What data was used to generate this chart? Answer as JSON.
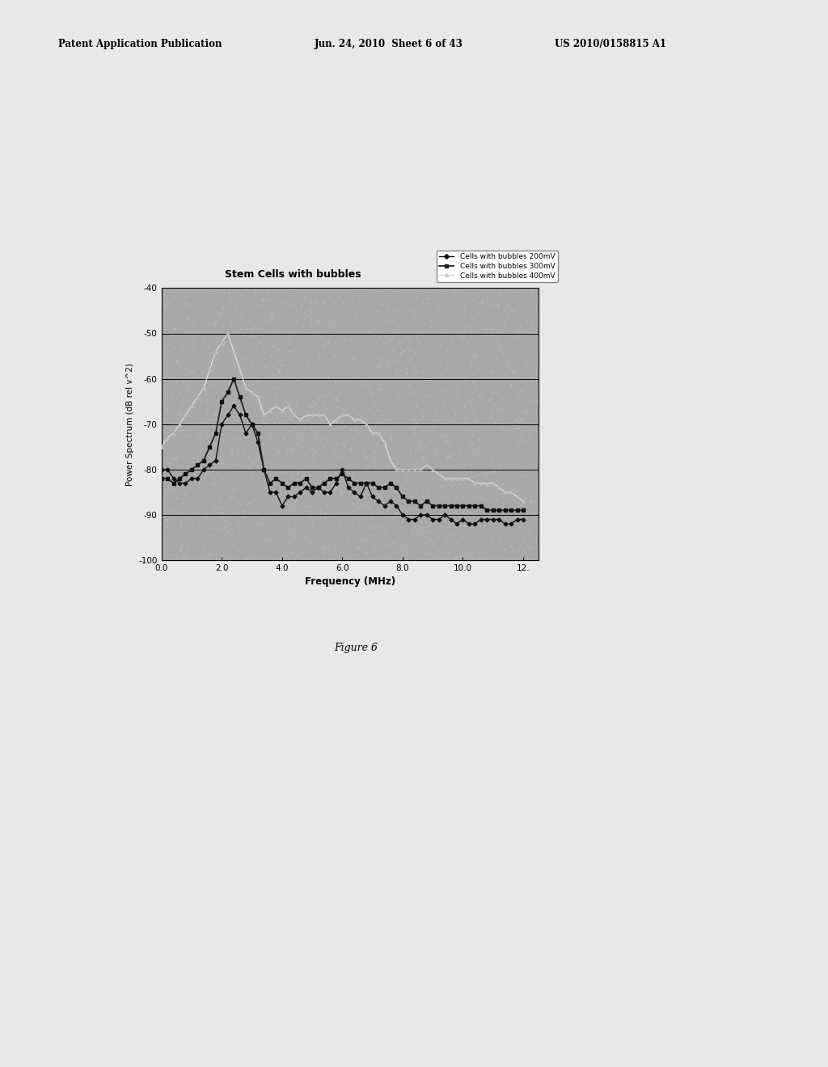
{
  "title": "Stem Cells with bubbles",
  "xlabel": "Frequency (MHz)",
  "ylabel": "Power Spectrum (dB rel v^2)",
  "xlim": [
    0.0,
    12.5
  ],
  "ylim": [
    -100,
    -40
  ],
  "xticks": [
    0.0,
    2.0,
    4.0,
    6.0,
    8.0,
    10.0,
    12.0
  ],
  "xticklabels": [
    "0.0",
    "2.0",
    "4.0",
    "6.0",
    "8.0",
    "10.0",
    "12."
  ],
  "yticks": [
    -100,
    -90,
    -80,
    -70,
    -60,
    -50,
    -40
  ],
  "legend_labels": [
    "Cells with bubbles 200mV",
    "Cells with bubbles 300mV",
    "Cells with bubbles 400mV"
  ],
  "background_color": "#a8a8a8",
  "figure_background": "#e8e8e8",
  "figure_caption": "Figure 6",
  "series_200mV_x": [
    0.0,
    0.2,
    0.4,
    0.6,
    0.8,
    1.0,
    1.2,
    1.4,
    1.6,
    1.8,
    2.0,
    2.2,
    2.4,
    2.6,
    2.8,
    3.0,
    3.2,
    3.4,
    3.6,
    3.8,
    4.0,
    4.2,
    4.4,
    4.6,
    4.8,
    5.0,
    5.2,
    5.4,
    5.6,
    5.8,
    6.0,
    6.2,
    6.4,
    6.6,
    6.8,
    7.0,
    7.2,
    7.4,
    7.6,
    7.8,
    8.0,
    8.2,
    8.4,
    8.6,
    8.8,
    9.0,
    9.2,
    9.4,
    9.6,
    9.8,
    10.0,
    10.2,
    10.4,
    10.6,
    10.8,
    11.0,
    11.2,
    11.4,
    11.6,
    11.8,
    12.0
  ],
  "series_200mV_y": [
    -80,
    -80,
    -82,
    -83,
    -83,
    -82,
    -82,
    -80,
    -79,
    -78,
    -70,
    -68,
    -66,
    -68,
    -72,
    -70,
    -74,
    -80,
    -85,
    -85,
    -88,
    -86,
    -86,
    -85,
    -84,
    -85,
    -84,
    -85,
    -85,
    -83,
    -80,
    -84,
    -85,
    -86,
    -83,
    -86,
    -87,
    -88,
    -87,
    -88,
    -90,
    -91,
    -91,
    -90,
    -90,
    -91,
    -91,
    -90,
    -91,
    -92,
    -91,
    -92,
    -92,
    -91,
    -91,
    -91,
    -91,
    -92,
    -92,
    -91,
    -91
  ],
  "series_300mV_x": [
    0.0,
    0.2,
    0.4,
    0.6,
    0.8,
    1.0,
    1.2,
    1.4,
    1.6,
    1.8,
    2.0,
    2.2,
    2.4,
    2.6,
    2.8,
    3.0,
    3.2,
    3.4,
    3.6,
    3.8,
    4.0,
    4.2,
    4.4,
    4.6,
    4.8,
    5.0,
    5.2,
    5.4,
    5.6,
    5.8,
    6.0,
    6.2,
    6.4,
    6.6,
    6.8,
    7.0,
    7.2,
    7.4,
    7.6,
    7.8,
    8.0,
    8.2,
    8.4,
    8.6,
    8.8,
    9.0,
    9.2,
    9.4,
    9.6,
    9.8,
    10.0,
    10.2,
    10.4,
    10.6,
    10.8,
    11.0,
    11.2,
    11.4,
    11.6,
    11.8,
    12.0
  ],
  "series_300mV_y": [
    -82,
    -82,
    -83,
    -82,
    -81,
    -80,
    -79,
    -78,
    -75,
    -72,
    -65,
    -63,
    -60,
    -64,
    -68,
    -70,
    -72,
    -80,
    -83,
    -82,
    -83,
    -84,
    -83,
    -83,
    -82,
    -84,
    -84,
    -83,
    -82,
    -82,
    -81,
    -82,
    -83,
    -83,
    -83,
    -83,
    -84,
    -84,
    -83,
    -84,
    -86,
    -87,
    -87,
    -88,
    -87,
    -88,
    -88,
    -88,
    -88,
    -88,
    -88,
    -88,
    -88,
    -88,
    -89,
    -89,
    -89,
    -89,
    -89,
    -89,
    -89
  ],
  "series_400mV_x": [
    0.0,
    0.2,
    0.4,
    0.6,
    0.8,
    1.0,
    1.2,
    1.4,
    1.6,
    1.8,
    2.0,
    2.2,
    2.4,
    2.6,
    2.8,
    3.0,
    3.2,
    3.4,
    3.6,
    3.8,
    4.0,
    4.2,
    4.4,
    4.6,
    4.8,
    5.0,
    5.2,
    5.4,
    5.6,
    5.8,
    6.0,
    6.2,
    6.4,
    6.6,
    6.8,
    7.0,
    7.2,
    7.4,
    7.6,
    7.8,
    8.0,
    8.2,
    8.4,
    8.6,
    8.8,
    9.0,
    9.2,
    9.4,
    9.6,
    9.8,
    10.0,
    10.2,
    10.4,
    10.6,
    10.8,
    11.0,
    11.2,
    11.4,
    11.6,
    11.8,
    12.0
  ],
  "series_400mV_y": [
    -75,
    -73,
    -72,
    -70,
    -68,
    -66,
    -64,
    -62,
    -58,
    -54,
    -52,
    -50,
    -54,
    -58,
    -62,
    -63,
    -64,
    -68,
    -67,
    -66,
    -67,
    -66,
    -68,
    -69,
    -68,
    -68,
    -68,
    -68,
    -70,
    -69,
    -68,
    -68,
    -69,
    -69,
    -70,
    -72,
    -72,
    -74,
    -78,
    -80,
    -80,
    -80,
    -80,
    -80,
    -79,
    -80,
    -81,
    -82,
    -82,
    -82,
    -82,
    -82,
    -83,
    -83,
    -83,
    -83,
    -84,
    -85,
    -85,
    -86,
    -87
  ]
}
